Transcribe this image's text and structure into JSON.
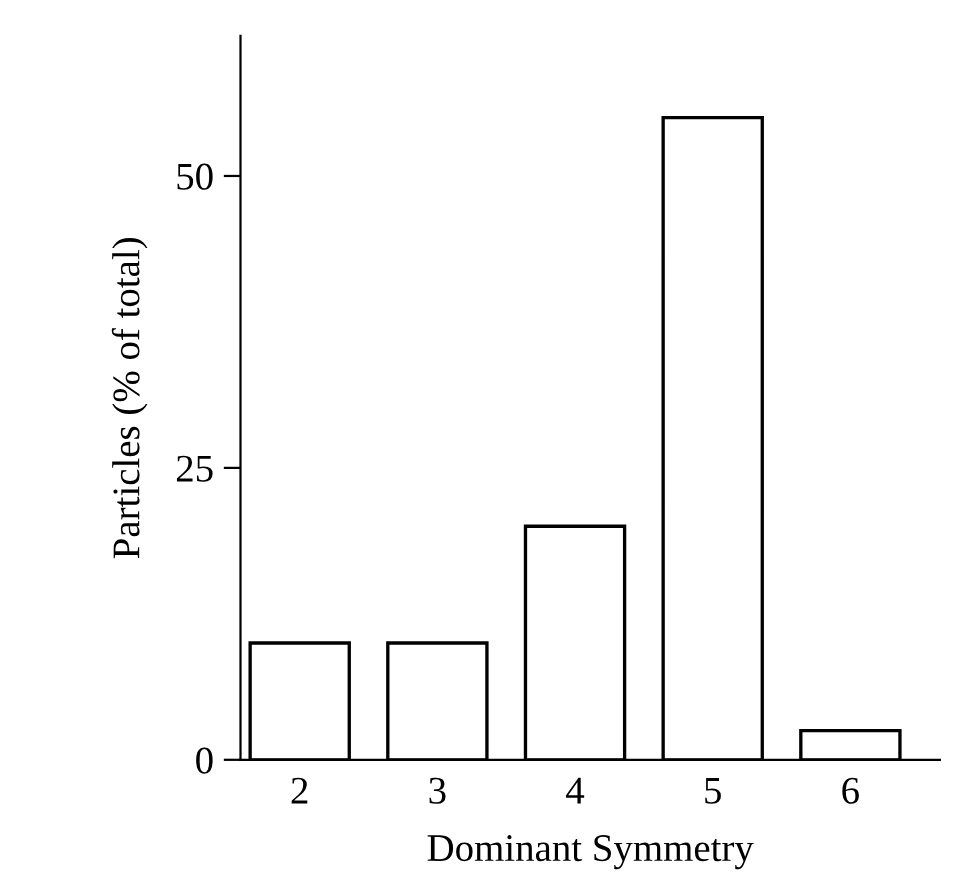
{
  "chart_data": {
    "type": "bar",
    "xlabel": "Dominant Symmetry",
    "ylabel": "Particles (% of total)",
    "categories": [
      "2",
      "3",
      "4",
      "5",
      "6"
    ],
    "values": [
      10,
      10,
      20,
      55,
      2.5
    ],
    "color": "#ffffff",
    "ylim": [
      0,
      62
    ],
    "yticks": [
      0,
      25,
      50
    ],
    "grid": false,
    "legend": false
  }
}
